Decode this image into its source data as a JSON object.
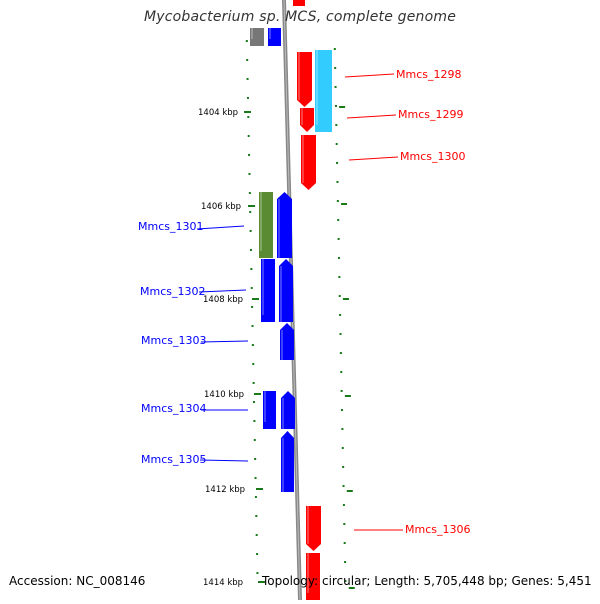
{
  "title": "Mycobacterium sp. MCS, complete genome",
  "footer": {
    "accession": "Accession: NC_008146",
    "topology": "Topology: circular; Length: 5,705,448 bp; Genes: 5,451"
  },
  "colors": {
    "forward": "#ff0000",
    "reverse": "#0000ff",
    "cyan": "#33ccff",
    "olive": "#5a8a32",
    "gray": "#777777",
    "scale": "#1a7a1a",
    "backbone": "#888888"
  },
  "ticks": [
    {
      "label": "1404 kbp"
    },
    {
      "label": "1406 kbp"
    },
    {
      "label": "1408 kbp"
    },
    {
      "label": "1410 kbp"
    },
    {
      "label": "1412 kbp"
    },
    {
      "label": "1414 kbp"
    }
  ],
  "genes": {
    "forward": [
      {
        "label": "Mmcs_1298"
      },
      {
        "label": "Mmcs_1299"
      },
      {
        "label": "Mmcs_1300"
      },
      {
        "label": "Mmcs_1306"
      }
    ],
    "reverse": [
      {
        "label": "Mmcs_1301"
      },
      {
        "label": "Mmcs_1302"
      },
      {
        "label": "Mmcs_1303"
      },
      {
        "label": "Mmcs_1304"
      },
      {
        "label": "Mmcs_1305"
      }
    ]
  }
}
